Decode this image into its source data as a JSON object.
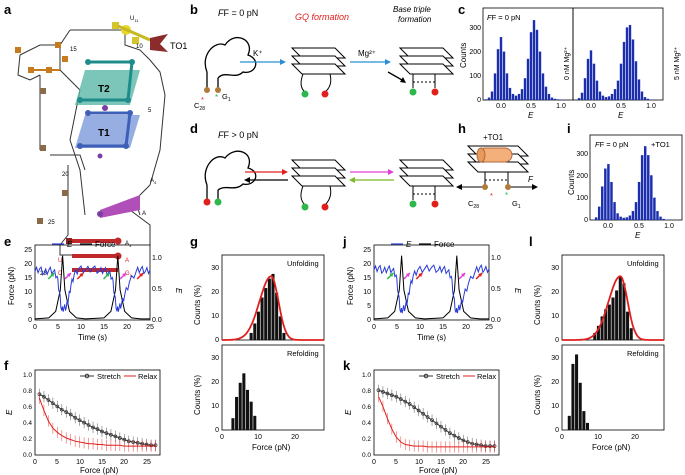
{
  "panels": {
    "a": "a",
    "b": "b",
    "c": "c",
    "d": "d",
    "e": "e",
    "f": "f",
    "g": "g",
    "h": "h",
    "i": "i",
    "j": "j",
    "k": "k",
    "l": "l"
  },
  "panel_a": {
    "labels": {
      "T2": "T2",
      "T1": "T1",
      "TO1": "TO1",
      "U11": "U",
      "U11_sub": "11",
      "U10": "10",
      "n15": "15",
      "n5": "5",
      "n20": "20",
      "n25": "25",
      "n1": "1",
      "n28": "28",
      "A4": "A",
      "A4_sub": "4",
      "A3": "A",
      "A3_sub": "3",
      "G1": "G",
      "G1_sub": "1",
      "U": "U",
      "C": "C",
      "A": "A",
      "G": "G"
    }
  },
  "panel_b": {
    "force": "F = 0 pN",
    "gq": "GQ formation",
    "bt": "Base triple",
    "bt2": "formation",
    "kplus": "K⁺",
    "mg": "Mg²⁺",
    "c28": "C",
    "c28_sub": "28",
    "g1": "G",
    "g1_sub": "1"
  },
  "panel_d": {
    "force": "F > 0 pN"
  },
  "panel_h": {
    "to1": "+TO1",
    "F": "F",
    "c28": "C",
    "c28_sub": "28",
    "g1": "G",
    "g1_sub": "1"
  },
  "panel_c": {
    "force": "F = 0 pN",
    "mg0": "0 nM Mg²⁺",
    "mg5": "5 nM Mg²⁺",
    "ylabel": "Counts",
    "xlabel": "E",
    "yticks": [
      "0",
      "100",
      "200",
      "300"
    ],
    "xticks": [
      "0.0",
      "0.5",
      "1.0"
    ]
  },
  "panel_i": {
    "force": "F = 0 pN",
    "to1": "+TO1",
    "ylabel": "Counts",
    "xlabel": "E",
    "yticks": [
      "0",
      "100",
      "200",
      "300"
    ],
    "xticks": [
      "0.0",
      "0.5",
      "1.0"
    ]
  },
  "panel_e": {
    "legend_e": "E",
    "legend_force": "Force",
    "ylabel": "Force (pN)",
    "y2label": "E",
    "xlabel": "Time (s)",
    "yticks": [
      "0",
      "5",
      "10",
      "15",
      "20",
      "25"
    ],
    "y2ticks": [
      "0.0",
      "0.5",
      "1.0"
    ],
    "xticks": [
      "0",
      "5",
      "10",
      "15",
      "20",
      "25"
    ]
  },
  "panel_j": {
    "legend_e": "E",
    "legend_force": "Force",
    "ylabel": "Force (pN)",
    "y2label": "E",
    "xlabel": "Time (s)",
    "yticks": [
      "0",
      "5",
      "10",
      "15",
      "20",
      "25"
    ],
    "y2ticks": [
      "0.0",
      "0.5",
      "1.0"
    ],
    "xticks": [
      "0",
      "5",
      "10",
      "15",
      "20",
      "25"
    ]
  },
  "panel_f": {
    "legend_stretch": "Stretch",
    "legend_relax": "Relax",
    "ylabel": "E",
    "xlabel": "Force (pN)",
    "yticks": [
      "0.0",
      "0.2",
      "0.4",
      "0.6",
      "0.8",
      "1.0"
    ],
    "xticks": [
      "0",
      "5",
      "10",
      "15",
      "20",
      "25"
    ]
  },
  "panel_k": {
    "legend_stretch": "Stretch",
    "legend_relax": "Relax",
    "ylabel": "E",
    "xlabel": "Force (pN)",
    "yticks": [
      "0.0",
      "0.2",
      "0.4",
      "0.6",
      "0.8",
      "1.0"
    ],
    "xticks": [
      "0",
      "5",
      "10",
      "15",
      "20",
      "25"
    ]
  },
  "panel_g": {
    "unfold": "Unfolding",
    "refold": "Refolding",
    "ylabel": "Counts (%)",
    "xlabel": "Force (pN)",
    "yticks_top": [
      "0",
      "10",
      "20",
      "30"
    ],
    "yticks_bot": [
      "0",
      "10",
      "20",
      "30"
    ],
    "xticks": [
      "0",
      "10",
      "20"
    ]
  },
  "panel_l": {
    "unfold": "Unfolding",
    "refold": "Refolding",
    "ylabel": "Counts (%)",
    "xlabel": "Force (pN)",
    "yticks_top": [
      "0",
      "10",
      "20",
      "30"
    ],
    "yticks_bot": [
      "0",
      "10",
      "20",
      "30"
    ],
    "xticks": [
      "0",
      "10",
      "20"
    ]
  },
  "chart_data": [
    {
      "id": "c-left",
      "type": "bar",
      "title": "F = 0 pN, 0 nM Mg2+",
      "xlabel": "E",
      "ylabel": "Counts",
      "xlim": [
        -0.3,
        1.2
      ],
      "ylim": [
        0,
        380
      ],
      "bin_width": 0.05,
      "x": [
        -0.25,
        -0.2,
        -0.15,
        -0.1,
        -0.05,
        0.0,
        0.05,
        0.1,
        0.15,
        0.2,
        0.25,
        0.3,
        0.35,
        0.4,
        0.45,
        0.5,
        0.55,
        0.6,
        0.65,
        0.7,
        0.75,
        0.8,
        0.85,
        0.9,
        0.95,
        1.0,
        1.05
      ],
      "values": [
        3,
        10,
        35,
        110,
        210,
        260,
        200,
        110,
        50,
        25,
        18,
        25,
        45,
        90,
        170,
        280,
        330,
        290,
        200,
        110,
        55,
        25,
        10,
        5,
        3,
        2,
        1
      ]
    },
    {
      "id": "c-right",
      "type": "bar",
      "title": "F = 0 pN, 5 nM Mg2+",
      "xlabel": "E",
      "ylabel": "Counts",
      "xlim": [
        -0.3,
        1.2
      ],
      "ylim": [
        0,
        380
      ],
      "bin_width": 0.05,
      "x": [
        -0.25,
        -0.2,
        -0.15,
        -0.1,
        -0.05,
        0.0,
        0.05,
        0.1,
        0.15,
        0.2,
        0.25,
        0.3,
        0.35,
        0.4,
        0.45,
        0.5,
        0.55,
        0.6,
        0.65,
        0.7,
        0.75,
        0.8,
        0.85,
        0.9,
        0.95,
        1.0,
        1.05
      ],
      "values": [
        2,
        8,
        30,
        90,
        170,
        205,
        150,
        80,
        35,
        18,
        12,
        15,
        25,
        45,
        80,
        150,
        240,
        300,
        310,
        250,
        160,
        85,
        35,
        12,
        5,
        2,
        1
      ]
    },
    {
      "id": "i",
      "type": "bar",
      "title": "F = 0 pN, +TO1",
      "xlabel": "E",
      "ylabel": "Counts",
      "xlim": [
        -0.3,
        1.2
      ],
      "ylim": [
        0,
        380
      ],
      "bin_width": 0.05,
      "x": [
        -0.25,
        -0.2,
        -0.15,
        -0.1,
        -0.05,
        0.0,
        0.05,
        0.1,
        0.15,
        0.2,
        0.25,
        0.3,
        0.35,
        0.4,
        0.45,
        0.5,
        0.55,
        0.6,
        0.65,
        0.7,
        0.75,
        0.8,
        0.85,
        0.9,
        0.95,
        1.0,
        1.05
      ],
      "values": [
        2,
        12,
        60,
        150,
        230,
        250,
        170,
        80,
        30,
        15,
        10,
        12,
        20,
        40,
        80,
        170,
        290,
        330,
        290,
        200,
        100,
        40,
        15,
        5,
        2,
        1,
        0
      ]
    },
    {
      "id": "e",
      "type": "line",
      "xlabel": "Time (s)",
      "ylabel": "Force (pN)",
      "y2label": "E",
      "xlim": [
        0,
        25
      ],
      "ylim": [
        0,
        35
      ],
      "y2lim": [
        0,
        1.2
      ],
      "series": [
        {
          "name": "Force",
          "color": "#000000",
          "x": [
            0,
            3,
            4.5,
            5.5,
            6,
            6.5,
            7.5,
            9,
            11,
            15,
            16.5,
            17.5,
            18,
            18.5,
            19.5,
            21,
            23,
            25
          ],
          "y": [
            0.5,
            1,
            4,
            14,
            30,
            14,
            4,
            1,
            0.5,
            1,
            4,
            14,
            30,
            14,
            4,
            1,
            0.5,
            0.5
          ]
        },
        {
          "name": "E",
          "color": "#2a3bd6",
          "x": [
            0,
            1,
            2,
            3,
            4,
            4.8,
            5.3,
            5.8,
            6.3,
            6.8,
            7.3,
            7.8,
            8.5,
            9.5,
            11,
            12.5,
            14,
            15,
            16,
            16.8,
            17.3,
            17.8,
            18.3,
            18.8,
            19.5,
            20.5,
            22,
            23,
            24,
            25
          ],
          "y": [
            0.78,
            0.82,
            0.75,
            0.8,
            0.78,
            0.7,
            0.45,
            0.15,
            0.2,
            0.2,
            0.35,
            0.55,
            0.72,
            0.82,
            0.8,
            0.83,
            0.78,
            0.8,
            0.76,
            0.68,
            0.4,
            0.15,
            0.2,
            0.25,
            0.4,
            0.6,
            0.78,
            0.82,
            0.78,
            0.8
          ]
        }
      ],
      "arrows": [
        "green",
        "magenta",
        "red",
        "green",
        "magenta",
        "red"
      ]
    },
    {
      "id": "j",
      "type": "line",
      "xlabel": "Time (s)",
      "ylabel": "Force (pN)",
      "y2label": "E",
      "xlim": [
        0,
        25
      ],
      "ylim": [
        0,
        35
      ],
      "y2lim": [
        0,
        1.2
      ],
      "series": [
        {
          "name": "Force",
          "color": "#000000",
          "x": [
            0,
            3,
            4.5,
            5.5,
            6,
            6.5,
            7.5,
            9,
            11,
            15,
            16.5,
            17.5,
            18,
            18.5,
            19.5,
            21,
            23,
            25
          ],
          "y": [
            0.5,
            1,
            4,
            14,
            30,
            14,
            4,
            1,
            0.5,
            1,
            4,
            14,
            30,
            14,
            4,
            1,
            0.5,
            0.5
          ]
        },
        {
          "name": "E",
          "color": "#2a3bd6",
          "x": [
            0,
            1,
            2,
            3,
            4,
            4.8,
            5.3,
            5.8,
            6.3,
            6.8,
            7.3,
            7.8,
            8.5,
            9.5,
            11,
            12.5,
            14,
            15,
            16,
            16.8,
            17.3,
            17.8,
            18.3,
            18.8,
            19.5,
            20.5,
            22,
            23,
            24,
            25
          ],
          "y": [
            0.8,
            0.84,
            0.78,
            0.82,
            0.8,
            0.72,
            0.42,
            0.12,
            0.18,
            0.2,
            0.32,
            0.52,
            0.7,
            0.8,
            0.82,
            0.84,
            0.8,
            0.82,
            0.78,
            0.7,
            0.38,
            0.12,
            0.18,
            0.22,
            0.38,
            0.58,
            0.78,
            0.84,
            0.8,
            0.82
          ]
        }
      ],
      "arrows": [
        "green",
        "magenta",
        "red",
        "magenta",
        "red"
      ]
    },
    {
      "id": "f",
      "type": "line",
      "xlabel": "Force (pN)",
      "ylabel": "E",
      "xlim": [
        0,
        28
      ],
      "ylim": [
        0,
        1.05
      ],
      "series": [
        {
          "name": "Stretch",
          "color": "#333333",
          "x": [
            1,
            2,
            3,
            4,
            5,
            6,
            7,
            8,
            9,
            10,
            11,
            12,
            13,
            14,
            15,
            16,
            17,
            18,
            19,
            20,
            21,
            22,
            23,
            24,
            25,
            26,
            27
          ],
          "y": [
            0.75,
            0.72,
            0.68,
            0.64,
            0.6,
            0.56,
            0.53,
            0.5,
            0.46,
            0.43,
            0.4,
            0.37,
            0.34,
            0.32,
            0.29,
            0.27,
            0.25,
            0.23,
            0.21,
            0.19,
            0.17,
            0.16,
            0.15,
            0.14,
            0.13,
            0.12,
            0.12
          ]
        },
        {
          "name": "Relax",
          "color": "#e0201e",
          "x": [
            1,
            2,
            3,
            4,
            5,
            6,
            7,
            8,
            9,
            10,
            11,
            12,
            13,
            14,
            15,
            16,
            17,
            18,
            19,
            20,
            21,
            22,
            23,
            24,
            25,
            26,
            27
          ],
          "y": [
            0.7,
            0.55,
            0.42,
            0.33,
            0.28,
            0.24,
            0.21,
            0.19,
            0.17,
            0.16,
            0.15,
            0.14,
            0.14,
            0.13,
            0.13,
            0.12,
            0.12,
            0.12,
            0.12,
            0.11,
            0.11,
            0.11,
            0.11,
            0.11,
            0.11,
            0.11,
            0.11
          ]
        }
      ]
    },
    {
      "id": "k",
      "type": "line",
      "xlabel": "Force (pN)",
      "ylabel": "E",
      "xlim": [
        0,
        28
      ],
      "ylim": [
        0,
        1.05
      ],
      "series": [
        {
          "name": "Stretch",
          "color": "#333333",
          "x": [
            1,
            2,
            3,
            4,
            5,
            6,
            7,
            8,
            9,
            10,
            11,
            12,
            13,
            14,
            15,
            16,
            17,
            18,
            19,
            20,
            21,
            22,
            23,
            24,
            25,
            26,
            27
          ],
          "y": [
            0.8,
            0.78,
            0.76,
            0.74,
            0.72,
            0.69,
            0.66,
            0.63,
            0.59,
            0.55,
            0.51,
            0.47,
            0.43,
            0.39,
            0.35,
            0.31,
            0.27,
            0.24,
            0.21,
            0.18,
            0.16,
            0.14,
            0.13,
            0.12,
            0.11,
            0.11,
            0.11
          ]
        },
        {
          "name": "Relax",
          "color": "#e0201e",
          "x": [
            1,
            2,
            3,
            4,
            5,
            6,
            7,
            8,
            9,
            10,
            11,
            12,
            13,
            14,
            15,
            16,
            17,
            18,
            19,
            20,
            21,
            22,
            23,
            24,
            25,
            26,
            27
          ],
          "y": [
            0.72,
            0.6,
            0.45,
            0.32,
            0.22,
            0.16,
            0.13,
            0.12,
            0.11,
            0.11,
            0.11,
            0.1,
            0.1,
            0.1,
            0.1,
            0.1,
            0.1,
            0.1,
            0.1,
            0.1,
            0.1,
            0.1,
            0.1,
            0.1,
            0.1,
            0.1,
            0.1
          ]
        }
      ]
    },
    {
      "id": "g-unfold",
      "type": "bar",
      "title": "Unfolding",
      "xlabel": "Force (pN)",
      "ylabel": "Counts (%)",
      "xlim": [
        0,
        28
      ],
      "ylim": [
        0,
        36
      ],
      "bin_width": 1,
      "x": [
        8,
        9,
        10,
        11,
        12,
        13,
        14,
        15,
        16,
        17
      ],
      "values": [
        3,
        7,
        12,
        18,
        22,
        26,
        28,
        20,
        10,
        3
      ],
      "fit": {
        "type": "skewed-gaussian",
        "peak_x": 13.5,
        "peak_y": 27,
        "color": "#e0201e"
      }
    },
    {
      "id": "g-refold",
      "type": "bar",
      "title": "Refolding",
      "xlabel": "Force (pN)",
      "ylabel": "Counts (%)",
      "xlim": [
        0,
        28
      ],
      "ylim": [
        0,
        36
      ],
      "bin_width": 1,
      "x": [
        3,
        4,
        5,
        6,
        7,
        8,
        9
      ],
      "values": [
        5,
        14,
        20,
        24,
        17,
        12,
        6
      ]
    },
    {
      "id": "l-unfold",
      "type": "bar",
      "title": "Unfolding",
      "xlabel": "Force (pN)",
      "ylabel": "Counts (%)",
      "xlim": [
        0,
        28
      ],
      "ylim": [
        0,
        36
      ],
      "bin_width": 1,
      "x": [
        9,
        10,
        11,
        12,
        13,
        14,
        15,
        16,
        17,
        18,
        19
      ],
      "values": [
        3,
        6,
        10,
        13,
        15,
        18,
        21,
        27,
        24,
        12,
        5
      ],
      "fit": {
        "type": "skewed-gaussian",
        "peak_x": 16,
        "peak_y": 27,
        "color": "#e0201e"
      }
    },
    {
      "id": "l-refold",
      "type": "bar",
      "title": "Refolding",
      "xlabel": "Force (pN)",
      "ylabel": "Counts (%)",
      "xlim": [
        0,
        28
      ],
      "ylim": [
        0,
        36
      ],
      "bin_width": 1,
      "x": [
        2,
        3,
        4,
        5,
        6,
        7
      ],
      "values": [
        6,
        28,
        32,
        20,
        8,
        3
      ]
    }
  ]
}
